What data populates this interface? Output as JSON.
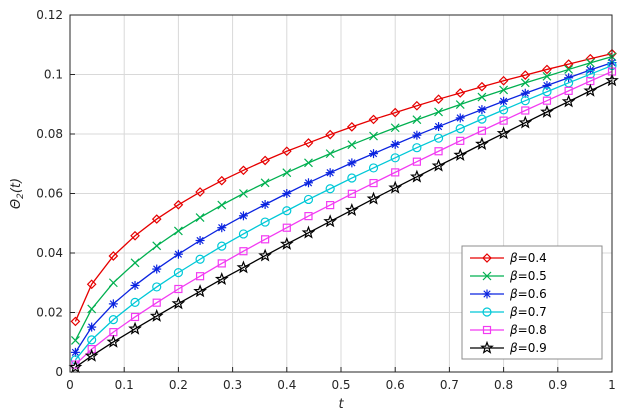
{
  "figure": {
    "background": "#ffffff"
  },
  "chart_data": {
    "type": "line",
    "title": "",
    "xlabel": "t",
    "ylabel": "Θ_2(t)",
    "xlim": [
      0,
      1
    ],
    "ylim": [
      0,
      0.12
    ],
    "xticks": [
      0,
      0.1,
      0.2,
      0.3,
      0.4,
      0.5,
      0.6,
      0.7,
      0.8,
      0.9,
      1
    ],
    "xtick_labels": [
      "0",
      "0.1",
      "0.2",
      "0.3",
      "0.4",
      "0.5",
      "0.6",
      "0.7",
      "0.8",
      "0.9",
      "1"
    ],
    "yticks": [
      0,
      0.02,
      0.04,
      0.06,
      0.08,
      0.1,
      0.12
    ],
    "ytick_labels": [
      "0",
      "0.02",
      "0.04",
      "0.06",
      "0.08",
      "0.1",
      "0.12"
    ],
    "grid": true,
    "legend_position": "lower right",
    "colors": {
      "grid": "#d9d9d9",
      "axis": "#262626",
      "tick_text": "#262626",
      "legend_border": "#8c8c8c",
      "legend_bg": "#ffffff",
      "legend_text": "#000000"
    },
    "x": [
      0.01,
      0.04,
      0.08,
      0.12,
      0.16,
      0.2,
      0.24,
      0.28,
      0.32,
      0.36,
      0.4,
      0.44,
      0.48,
      0.52,
      0.56,
      0.6,
      0.64,
      0.68,
      0.72,
      0.76,
      0.8,
      0.84,
      0.88,
      0.92,
      0.96,
      1.0
    ],
    "series": [
      {
        "name": "β=0.4",
        "color": "#e60000",
        "marker": "diamond",
        "values": [
          0.017,
          0.0295,
          0.039,
          0.0458,
          0.0514,
          0.0562,
          0.0605,
          0.0643,
          0.0678,
          0.0711,
          0.0742,
          0.077,
          0.0798,
          0.0824,
          0.0849,
          0.0872,
          0.0895,
          0.0917,
          0.0938,
          0.0959,
          0.0979,
          0.0998,
          0.1017,
          0.1035,
          0.1053,
          0.107
        ]
      },
      {
        "name": "β=0.5",
        "color": "#00b050",
        "marker": "x",
        "values": [
          0.0106,
          0.0212,
          0.03,
          0.0367,
          0.0424,
          0.0474,
          0.0519,
          0.0561,
          0.06,
          0.0636,
          0.067,
          0.0703,
          0.0734,
          0.0764,
          0.0793,
          0.0821,
          0.0848,
          0.0874,
          0.0899,
          0.0924,
          0.0948,
          0.0972,
          0.0994,
          0.1017,
          0.1039,
          0.106
        ]
      },
      {
        "name": "β=0.6",
        "color": "#0b24e0",
        "marker": "asterisk",
        "values": [
          0.0066,
          0.0151,
          0.0229,
          0.0291,
          0.0346,
          0.0396,
          0.0442,
          0.0485,
          0.0525,
          0.0563,
          0.06,
          0.0636,
          0.067,
          0.0703,
          0.0734,
          0.0765,
          0.0796,
          0.0825,
          0.0854,
          0.0882,
          0.091,
          0.0937,
          0.0963,
          0.0989,
          0.1015,
          0.104
        ]
      },
      {
        "name": "β=0.7",
        "color": "#00c8d7",
        "marker": "circle",
        "values": [
          0.0041,
          0.0108,
          0.0176,
          0.0234,
          0.0286,
          0.0334,
          0.0379,
          0.0423,
          0.0464,
          0.0504,
          0.0542,
          0.058,
          0.0616,
          0.0652,
          0.0686,
          0.072,
          0.0754,
          0.0786,
          0.0818,
          0.085,
          0.0881,
          0.0912,
          0.0942,
          0.0972,
          0.1001,
          0.103
        ]
      },
      {
        "name": "β=0.8",
        "color": "#f23bf2",
        "marker": "square",
        "values": [
          0.0025,
          0.0077,
          0.0134,
          0.0185,
          0.0233,
          0.0279,
          0.0322,
          0.0365,
          0.0406,
          0.0446,
          0.0485,
          0.0524,
          0.0561,
          0.0599,
          0.0635,
          0.0671,
          0.0707,
          0.0742,
          0.0777,
          0.0811,
          0.0845,
          0.0879,
          0.0912,
          0.0945,
          0.0978,
          0.101
        ]
      },
      {
        "name": "β=0.9",
        "color": "#000000",
        "marker": "star",
        "values": [
          0.0016,
          0.0054,
          0.0101,
          0.0145,
          0.0188,
          0.023,
          0.0271,
          0.0312,
          0.0351,
          0.0391,
          0.043,
          0.0468,
          0.0506,
          0.0544,
          0.0582,
          0.0619,
          0.0656,
          0.0693,
          0.0729,
          0.0766,
          0.0802,
          0.0838,
          0.0874,
          0.0909,
          0.0945,
          0.098
        ]
      }
    ]
  }
}
